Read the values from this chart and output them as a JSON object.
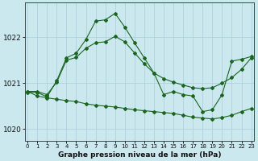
{
  "xlabel": "Graphe pression niveau de la mer (hPa)",
  "background_color": "#cce8ef",
  "grid_color": "#aaccdd",
  "line_color": "#1a6620",
  "x_ticks": [
    0,
    1,
    2,
    3,
    4,
    5,
    6,
    7,
    8,
    9,
    10,
    11,
    12,
    13,
    14,
    15,
    16,
    17,
    18,
    19,
    20,
    21,
    22,
    23
  ],
  "ylim": [
    1019.75,
    1022.75
  ],
  "yticks": [
    1020,
    1021,
    1022
  ],
  "series1": [
    1020.8,
    1020.8,
    1020.7,
    1021.05,
    1021.55,
    1021.65,
    1021.95,
    1022.35,
    1022.38,
    1022.52,
    1022.22,
    1021.88,
    1021.55,
    1021.22,
    1020.75,
    1020.82,
    1020.75,
    1020.72,
    1020.38,
    1020.42,
    1020.75,
    1021.48,
    1021.52,
    1021.58
  ],
  "series2": [
    1020.82,
    1020.72,
    1020.68,
    1020.65,
    1020.62,
    1020.6,
    1020.55,
    1020.52,
    1020.5,
    1020.48,
    1020.45,
    1020.42,
    1020.4,
    1020.38,
    1020.36,
    1020.34,
    1020.3,
    1020.26,
    1020.24,
    1020.22,
    1020.25,
    1020.3,
    1020.38,
    1020.45
  ],
  "series3": [
    1020.82,
    1020.82,
    1020.75,
    1021.02,
    1021.5,
    1021.56,
    1021.76,
    1021.88,
    1021.9,
    1022.02,
    1021.9,
    1021.66,
    1021.42,
    1021.22,
    1021.1,
    1021.02,
    1020.96,
    1020.9,
    1020.88,
    1020.9,
    1021.0,
    1021.12,
    1021.3,
    1021.55
  ]
}
